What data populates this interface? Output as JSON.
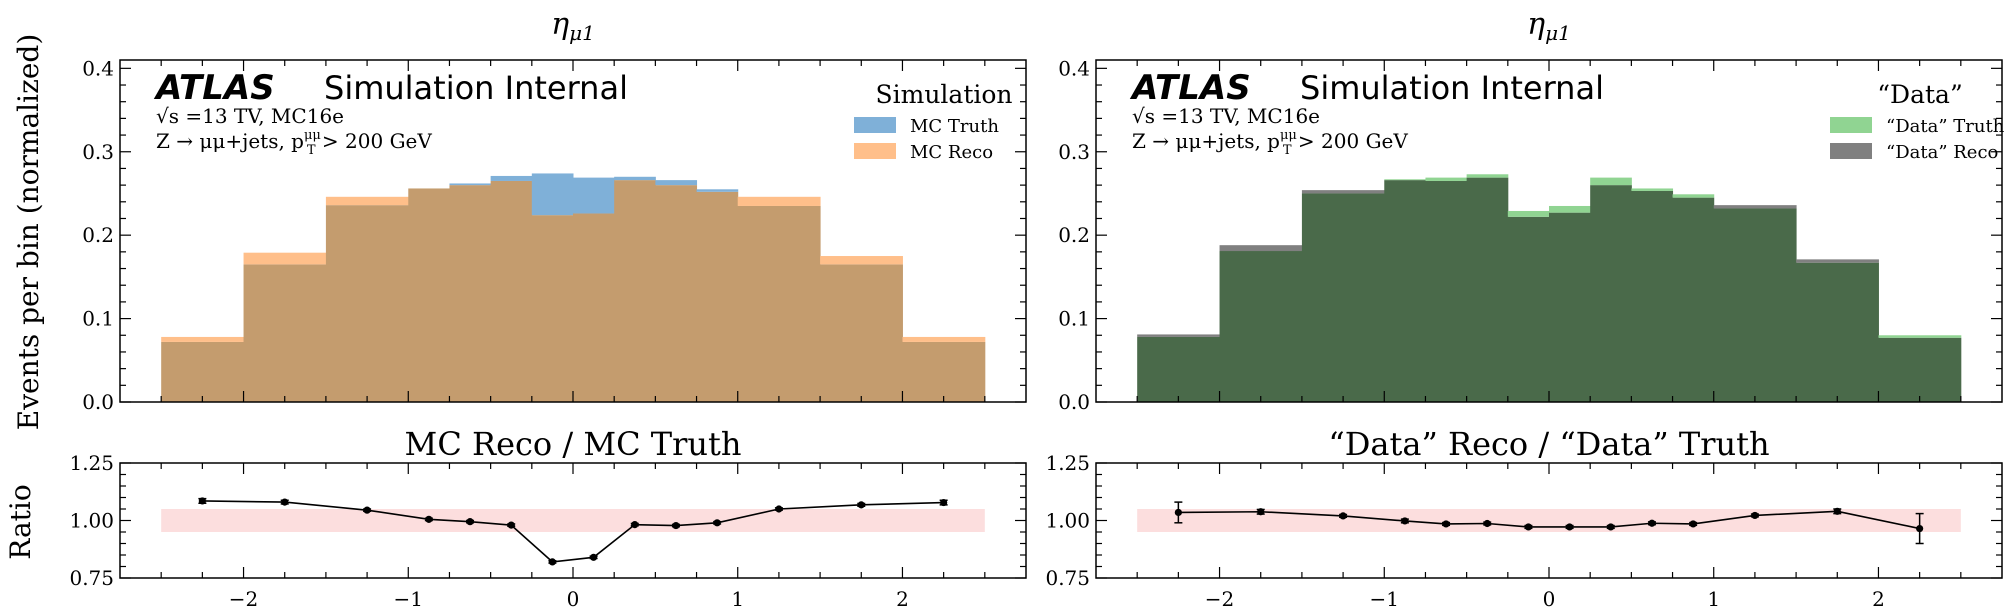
{
  "figure": {
    "ylabel_main": "Events per bin (normalized)",
    "ylabel_ratio": "Ratio",
    "branding": {
      "atlas": "ATLAS",
      "internal": "Simulation Internal",
      "energy": "√s =13 TV, MC16e",
      "selection": "Z → μμ+jets, p_T^μμ > 200 GeV"
    },
    "colors": {
      "mc_truth": "#7fb0d8",
      "mc_reco": "#ffbf8a",
      "mc_overlap": "#c49c6e",
      "data_truth": "#90d492",
      "data_reco": "#808080",
      "data_overlap": "#4a6a4a",
      "band": "#fcdede"
    }
  },
  "chart_data": [
    {
      "type": "bar",
      "title": "η_μ1",
      "legend_title": "Simulation",
      "ylabel": "Events per bin (normalized)",
      "ylim": [
        0.0,
        0.41
      ],
      "yticks": [
        "0.0",
        "0.1",
        "0.2",
        "0.3",
        "0.4"
      ],
      "bin_edges": [
        -2.5,
        -2.0,
        -1.5,
        -1.0,
        -0.75,
        -0.5,
        -0.25,
        0.0,
        0.25,
        0.5,
        0.75,
        1.0,
        1.5,
        2.0,
        2.5
      ],
      "series": [
        {
          "name": "MC Truth",
          "values": [
            0.072,
            0.165,
            0.236,
            0.256,
            0.262,
            0.271,
            0.274,
            0.269,
            0.27,
            0.266,
            0.255,
            0.235,
            0.165,
            0.072
          ]
        },
        {
          "name": "MC Reco",
          "values": [
            0.078,
            0.179,
            0.246,
            0.256,
            0.26,
            0.265,
            0.224,
            0.226,
            0.266,
            0.26,
            0.252,
            0.246,
            0.175,
            0.078
          ]
        }
      ],
      "legend_position": "top-right"
    },
    {
      "type": "bar",
      "title": "η_μ1",
      "legend_title": "“Data”",
      "ylabel": "Events per bin (normalized)",
      "ylim": [
        0.0,
        0.41
      ],
      "yticks": [
        "0.0",
        "0.1",
        "0.2",
        "0.3",
        "0.4"
      ],
      "bin_edges": [
        -2.5,
        -2.0,
        -1.5,
        -1.0,
        -0.75,
        -0.5,
        -0.25,
        0.0,
        0.25,
        0.5,
        0.75,
        1.0,
        1.5,
        2.0,
        2.5
      ],
      "series": [
        {
          "name": "“Data” Truth",
          "values": [
            0.078,
            0.181,
            0.25,
            0.267,
            0.269,
            0.273,
            0.229,
            0.235,
            0.269,
            0.256,
            0.249,
            0.232,
            0.167,
            0.08
          ]
        },
        {
          "name": "“Data” Reco",
          "values": [
            0.081,
            0.188,
            0.254,
            0.266,
            0.265,
            0.269,
            0.222,
            0.227,
            0.26,
            0.253,
            0.245,
            0.236,
            0.171,
            0.077
          ]
        }
      ],
      "legend_position": "top-right"
    },
    {
      "type": "line",
      "title": "MC Reco / MC Truth",
      "ylabel": "Ratio",
      "xlim": [
        -2.75,
        2.75
      ],
      "xticks": [
        -2,
        -1,
        0,
        1,
        2
      ],
      "xticklabels": [
        "−2",
        "−1",
        "0",
        "1",
        "2"
      ],
      "ylim": [
        0.75,
        1.25
      ],
      "yticks": [
        "0.75",
        "1.00",
        "1.25"
      ],
      "band": {
        "x": [
          -2.5,
          2.5
        ],
        "y": [
          0.95,
          1.05
        ]
      },
      "x": [
        -2.25,
        -1.75,
        -1.25,
        -0.875,
        -0.625,
        -0.375,
        -0.125,
        0.125,
        0.375,
        0.625,
        0.875,
        1.25,
        1.75,
        2.25
      ],
      "y": [
        1.085,
        1.08,
        1.045,
        1.005,
        0.995,
        0.98,
        0.82,
        0.84,
        0.982,
        0.978,
        0.99,
        1.05,
        1.068,
        1.078
      ],
      "yerr": [
        0.01,
        0.008,
        0.005,
        0.005,
        0.005,
        0.005,
        0.005,
        0.005,
        0.005,
        0.005,
        0.005,
        0.005,
        0.006,
        0.01
      ]
    },
    {
      "type": "line",
      "title": "“Data” Reco / “Data” Truth",
      "ylabel": "Ratio",
      "xlim": [
        -2.75,
        2.75
      ],
      "xticks": [
        -2,
        -1,
        0,
        1,
        2
      ],
      "xticklabels": [
        "−2",
        "−1",
        "0",
        "1",
        "2"
      ],
      "ylim": [
        0.75,
        1.25
      ],
      "yticks": [
        "0.75",
        "1.00",
        "1.25"
      ],
      "band": {
        "x": [
          -2.5,
          2.5
        ],
        "y": [
          0.95,
          1.05
        ]
      },
      "x": [
        -2.25,
        -1.75,
        -1.25,
        -0.875,
        -0.625,
        -0.375,
        -0.125,
        0.125,
        0.375,
        0.625,
        0.875,
        1.25,
        1.75,
        2.25
      ],
      "y": [
        1.035,
        1.038,
        1.02,
        0.998,
        0.985,
        0.987,
        0.972,
        0.972,
        0.972,
        0.988,
        0.985,
        1.022,
        1.04,
        0.965
      ],
      "yerr": [
        0.045,
        0.01,
        0.006,
        0.008,
        0.006,
        0.006,
        0.006,
        0.006,
        0.006,
        0.006,
        0.006,
        0.006,
        0.01,
        0.065
      ]
    }
  ]
}
